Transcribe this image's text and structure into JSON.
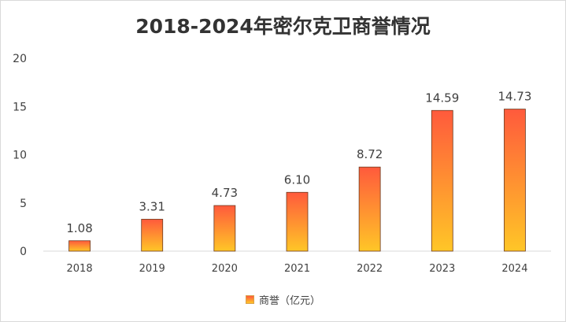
{
  "chart_data": {
    "type": "bar",
    "title": "2018-2024年密尔克卫商誉情况",
    "categories": [
      "2018",
      "2019",
      "2020",
      "2021",
      "2022",
      "2023",
      "2024"
    ],
    "series": [
      {
        "name": "商誉（亿元）",
        "values": [
          1.08,
          3.31,
          4.73,
          6.1,
          8.72,
          14.59,
          14.73
        ],
        "labels": [
          "1.08",
          "3.31",
          "4.73",
          "6.10",
          "8.72",
          "14.59",
          "14.73"
        ]
      }
    ],
    "yticks": [
      "0",
      "5",
      "10",
      "15",
      "20"
    ],
    "ylim": [
      0,
      20
    ],
    "xlabel": "",
    "ylabel": "",
    "legend_position": "bottom",
    "colors": {
      "bar_top": "#ff5a3c",
      "bar_bottom": "#ffc627",
      "axis": "#d9d9d9",
      "text": "#404040"
    }
  }
}
